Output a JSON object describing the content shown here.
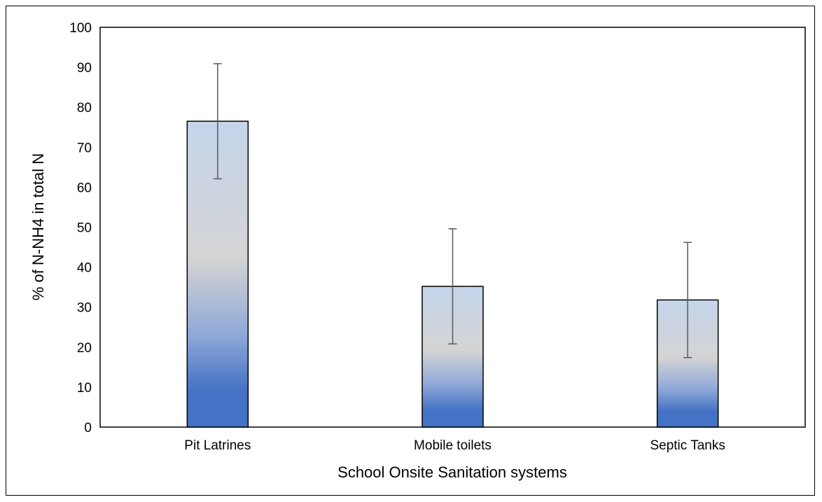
{
  "chart_data": {
    "type": "bar",
    "categories": [
      "Pit Latrines",
      "Mobile toilets",
      "Septic Tanks"
    ],
    "values": [
      76.5,
      35.2,
      31.8
    ],
    "error": [
      14.4,
      14.4,
      14.4
    ],
    "xlabel": "School Onsite Sanitation systems",
    "ylabel": "% of N-NH4 in total N",
    "ylim": [
      0,
      100
    ],
    "yticks": [
      0,
      10,
      20,
      30,
      40,
      50,
      60,
      70,
      80,
      90,
      100
    ],
    "grid": false,
    "legend": "none",
    "colors": {
      "bar_top": "#c5d5eb",
      "bar_mid": "#d4d4d4",
      "bar_low": "#8fa8d8",
      "bar_bottom": "#4472c4",
      "error_bar": "#595959"
    }
  }
}
